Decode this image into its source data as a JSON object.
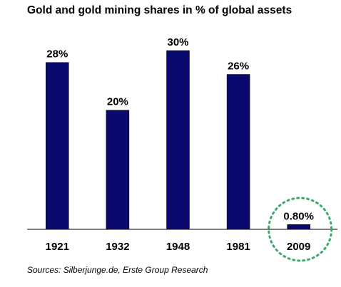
{
  "chart_data": {
    "type": "bar",
    "title": "Gold and gold mining shares in % of global assets",
    "categories": [
      "1921",
      "1932",
      "1948",
      "1981",
      "2009"
    ],
    "values": [
      28,
      20,
      30,
      26,
      0.8
    ],
    "data_labels": [
      "28%",
      "20%",
      "30%",
      "26%",
      "0.80%"
    ],
    "ylim": [
      0,
      30
    ],
    "grid": false,
    "legend": "none",
    "highlighted_category": "2009",
    "source": "Sources: Silberjunge.de, Erste Group Research"
  },
  "colors": {
    "bar": "#0a0a6e",
    "axis": "#000000",
    "highlight_ring": "#3aaa6a"
  }
}
